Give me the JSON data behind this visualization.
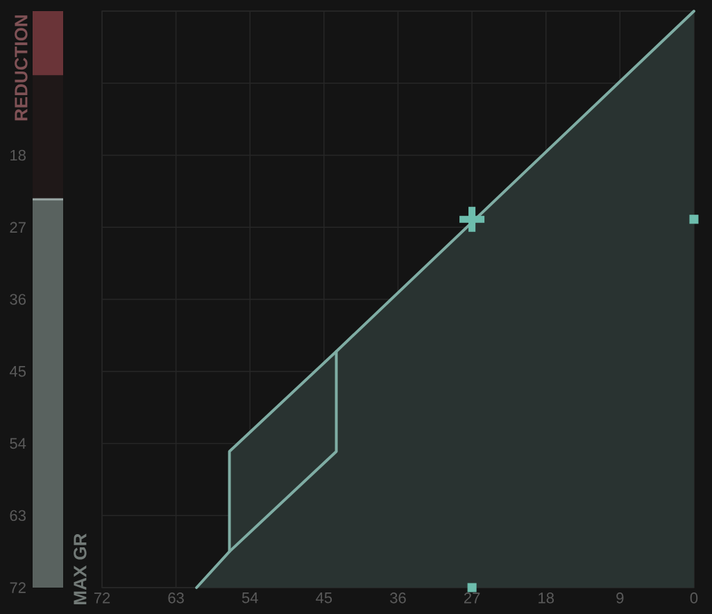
{
  "chart_data": [
    {
      "type": "bar",
      "categories": [
        null
      ],
      "ylim": [
        72,
        0
      ],
      "yticks": [
        18,
        27,
        36,
        45,
        54,
        63,
        72
      ],
      "tick_labels": "y",
      "series": [
        {
          "name": "REDUCTION",
          "color": "#6a3438",
          "values": [
            8
          ]
        }
      ],
      "bands": [
        {
          "axis": "y",
          "from": 23.5,
          "to": 72,
          "color": "#59625f",
          "label": "MAX GR"
        }
      ],
      "ref_lines": [
        {
          "axis": "y",
          "value": 23.5,
          "color": "#9ba7a5"
        }
      ]
    },
    {
      "type": "line",
      "xlim": [
        72,
        0
      ],
      "ylim": [
        72,
        0
      ],
      "xticks": [
        72,
        63,
        54,
        45,
        36,
        27,
        18,
        9,
        0
      ],
      "yticks": [
        0,
        9,
        18,
        27,
        36,
        45,
        54,
        63,
        72
      ],
      "tick_labels": "x",
      "grid": true,
      "series": [
        {
          "type": "area",
          "color": "#7fada4",
          "x": [
            0,
            43.5,
            56.5,
            56.5,
            60.5,
            0
          ],
          "values": [
            0,
            42.5,
            55,
            67.5,
            72,
            72
          ]
        },
        {
          "type": "line",
          "color": "#7fada4",
          "x": [
            56.5,
            43.5,
            43.5
          ],
          "values": [
            67.5,
            55,
            42.5
          ]
        },
        {
          "type": "scatter",
          "color": "#6dbdad",
          "marker": "cross",
          "x": [
            27
          ],
          "values": [
            26
          ]
        },
        {
          "type": "scatter",
          "color": "#6dbdad",
          "marker": "square",
          "x": [
            0,
            27
          ],
          "values": [
            26,
            72
          ]
        }
      ]
    }
  ]
}
